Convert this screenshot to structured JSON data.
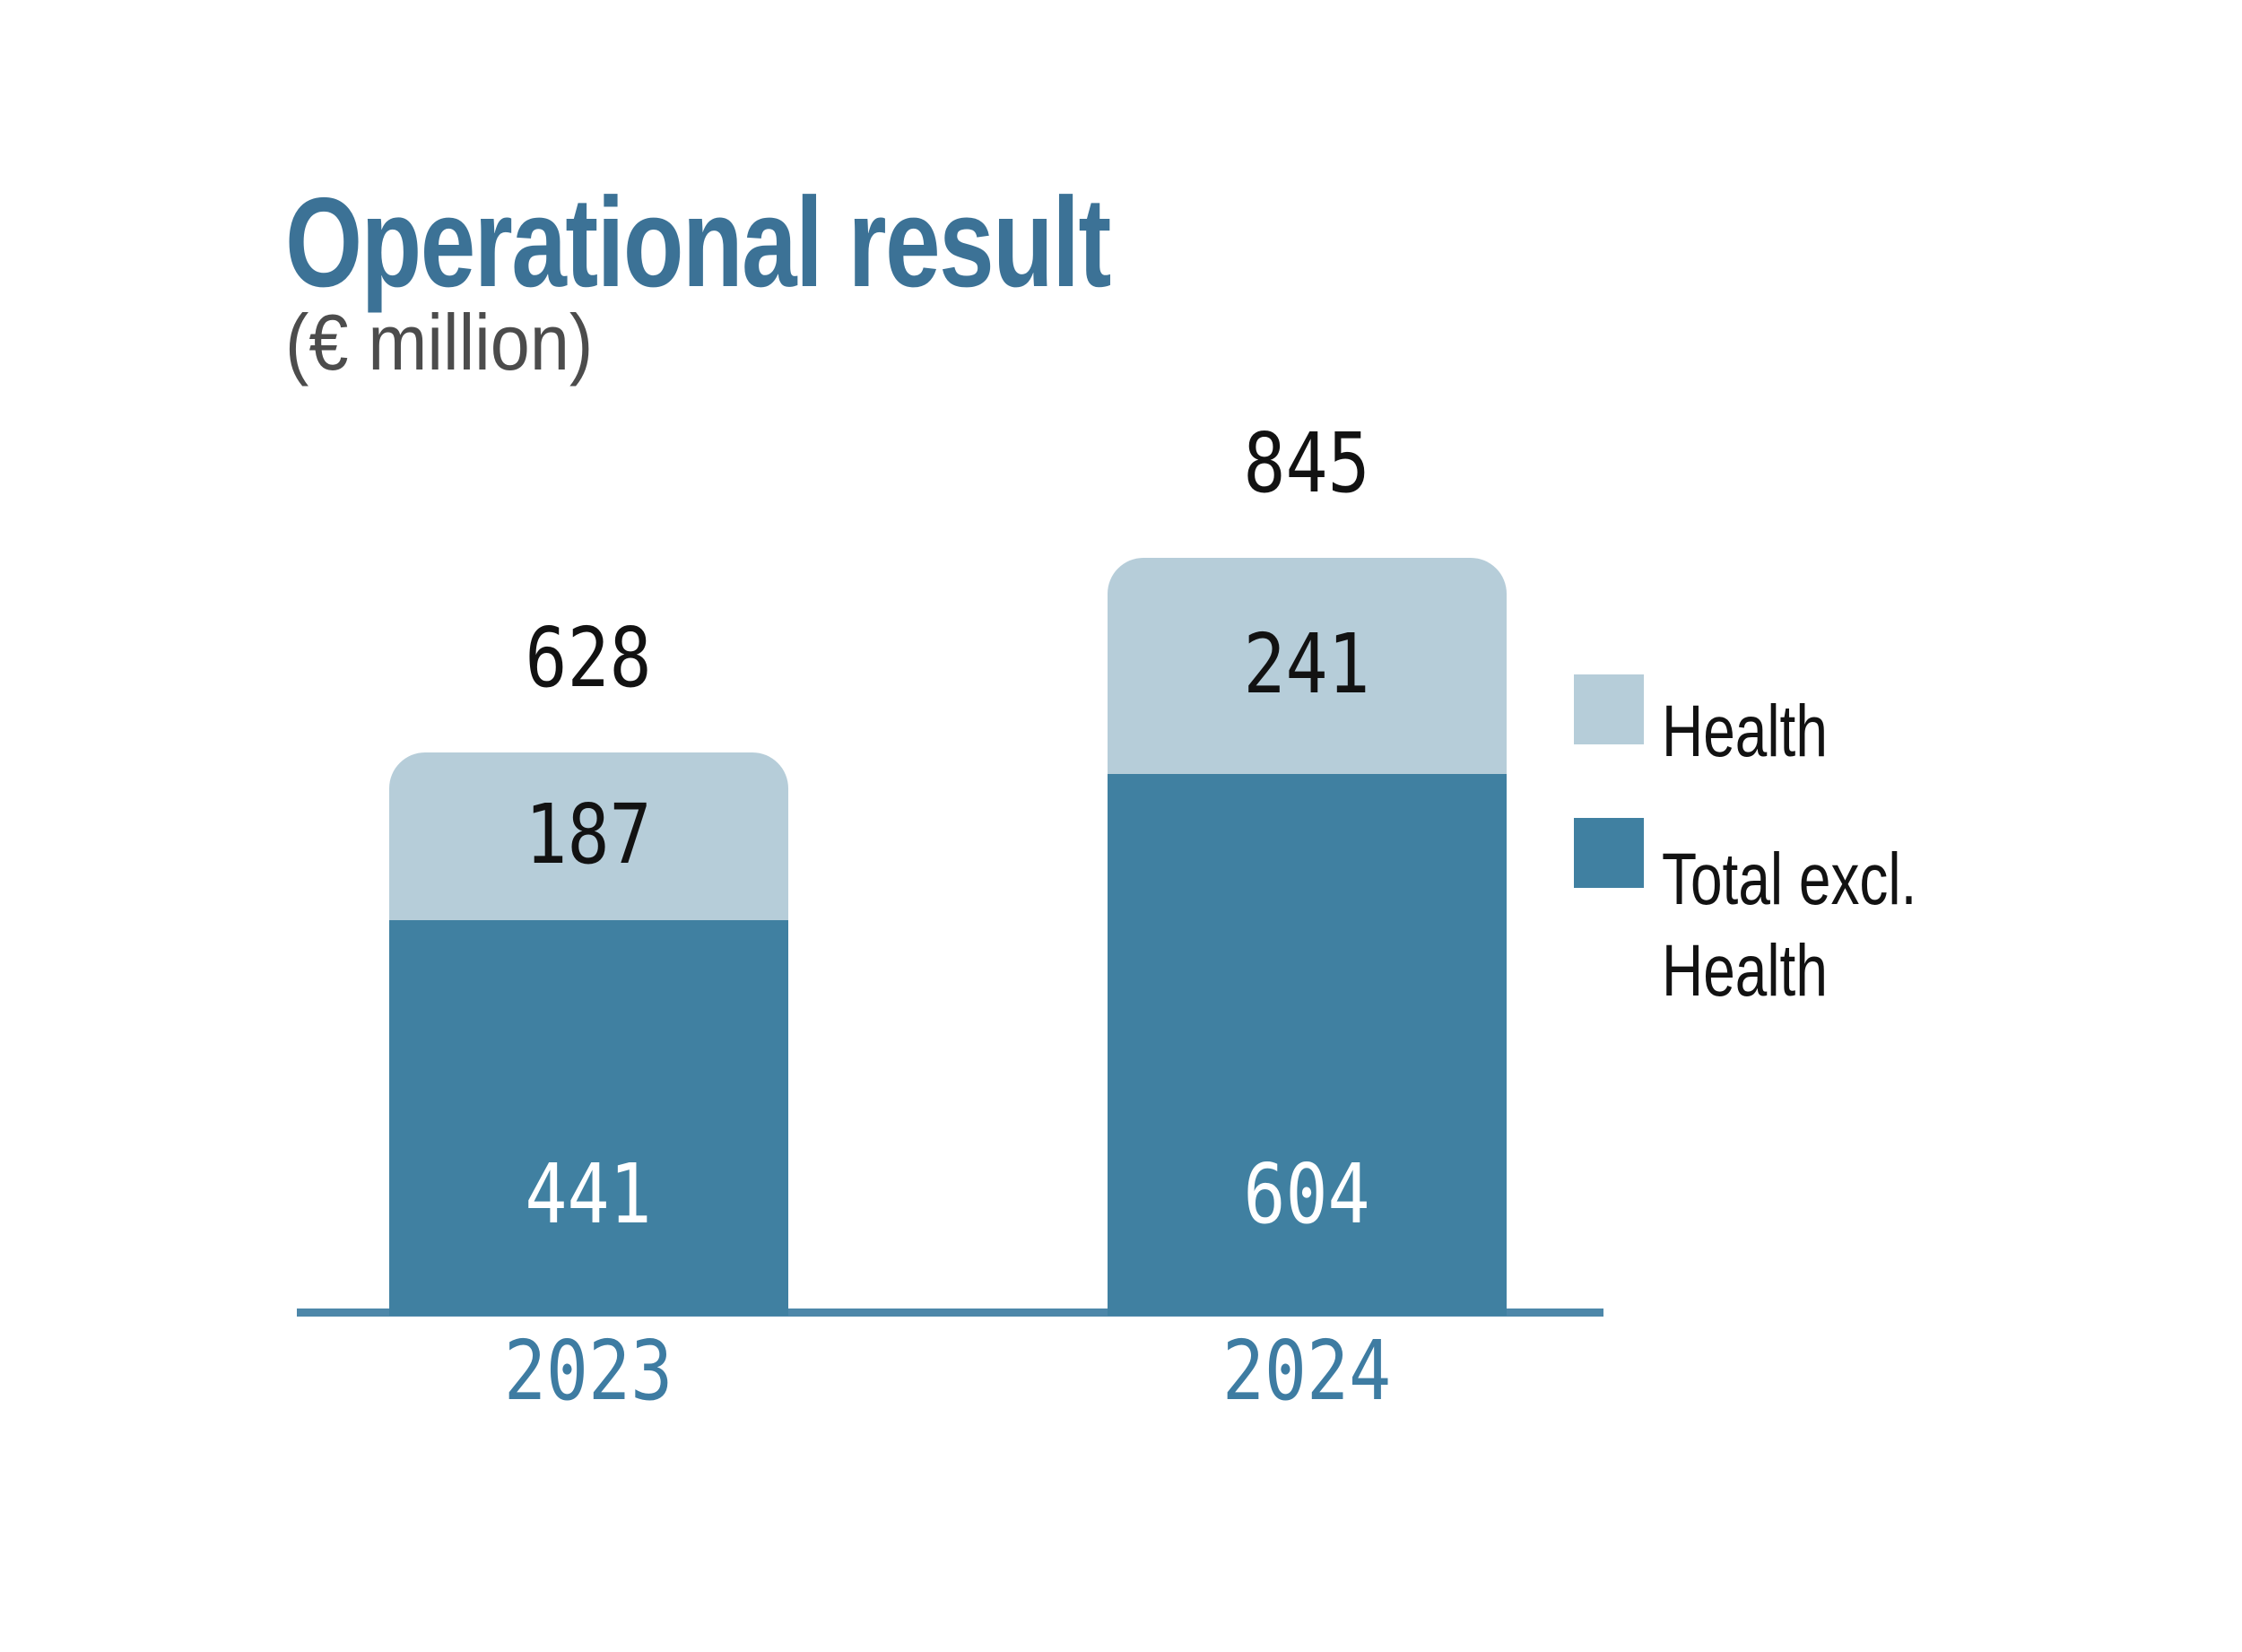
{
  "header": {
    "title": "Operational result",
    "subtitle": "(€ million)"
  },
  "legend": {
    "items": [
      {
        "label": "Health",
        "color": "#b6cdd9"
      },
      {
        "label": "Total excl. Health",
        "color": "#4080a1"
      }
    ]
  },
  "chart_data": {
    "type": "bar",
    "stacked": true,
    "title": "Operational result",
    "units": "€ million",
    "categories": [
      "2023",
      "2024"
    ],
    "series": [
      {
        "name": "Total excl. Health",
        "color": "#4080a1",
        "values": [
          441,
          604
        ]
      },
      {
        "name": "Health",
        "color": "#b6cdd9",
        "values": [
          187,
          241
        ]
      }
    ],
    "totals": [
      628,
      845
    ],
    "ylim": [
      0,
      900
    ],
    "gridlines": false,
    "legend_position": "right",
    "value_labels": {
      "totals_above_bars": true,
      "segments_inside_bars": true
    }
  },
  "colors": {
    "background": "#ffffff",
    "title": "#3c7296",
    "subtitle": "#4c4c4c",
    "axis_line": "#4d87a9",
    "category_label": "#3e7ca2",
    "total_label": "#121212",
    "segment_label_on_light": "#121212",
    "segment_label_on_dark": "#ffffff"
  }
}
